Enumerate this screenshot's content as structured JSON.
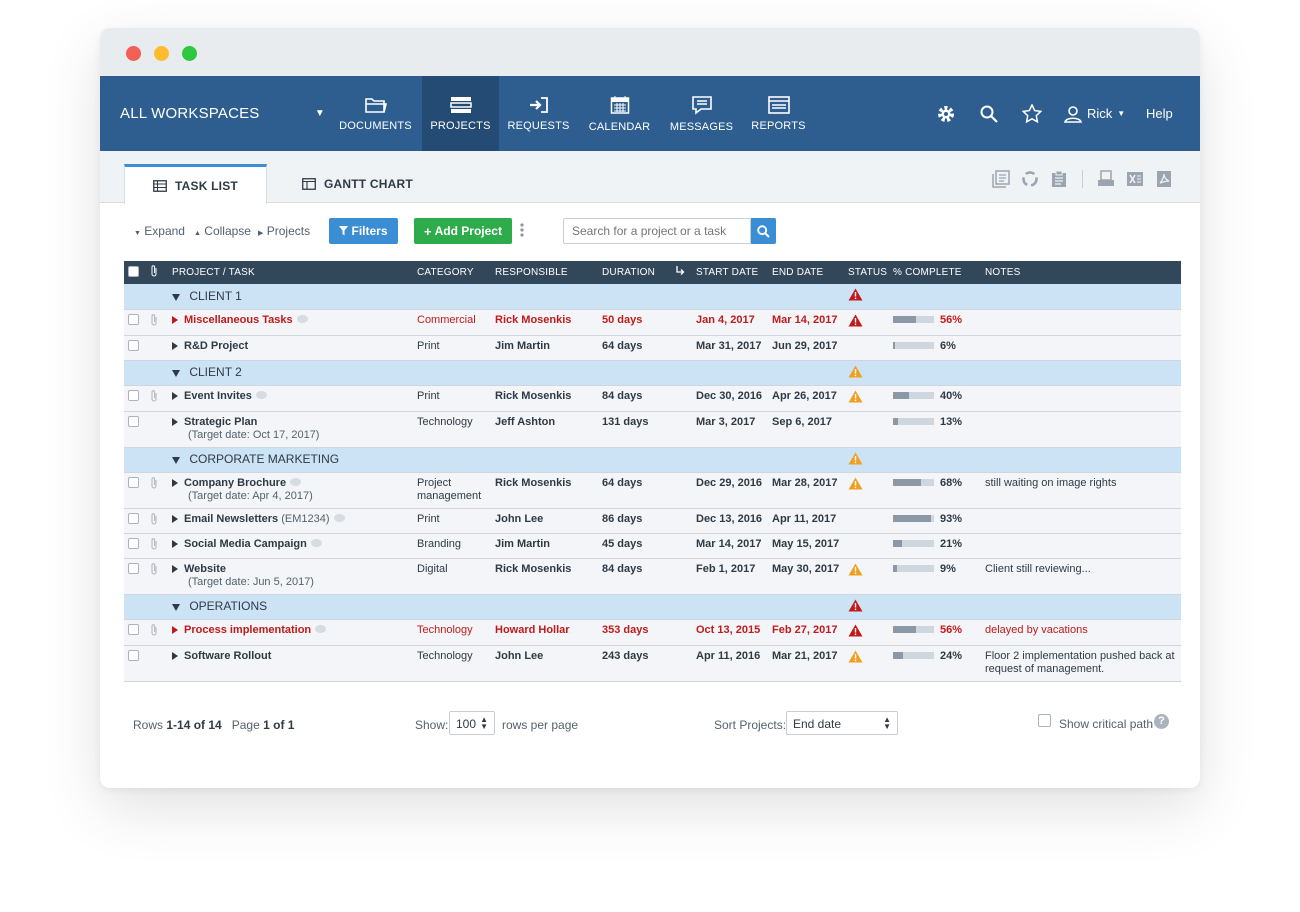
{
  "nav": {
    "workspace": "ALL WORKSPACES",
    "items": [
      {
        "label": "DOCUMENTS"
      },
      {
        "label": "PROJECTS"
      },
      {
        "label": "REQUESTS"
      },
      {
        "label": "CALENDAR"
      },
      {
        "label": "MESSAGES"
      },
      {
        "label": "REPORTS"
      }
    ],
    "user": "Rick",
    "help": "Help"
  },
  "tabs": {
    "task_list": "TASK LIST",
    "gantt_chart": "GANTT CHART"
  },
  "toolbar": {
    "expand": "Expand",
    "collapse": "Collapse",
    "projects": "Projects",
    "filters": "Filters",
    "add_project": "Add Project",
    "search_placeholder": "Search for a project or a task"
  },
  "table": {
    "headers": {
      "project": "PROJECT / TASK",
      "category": "CATEGORY",
      "responsible": "RESPONSIBLE",
      "duration": "DURATION",
      "start": "START DATE",
      "end": "END DATE",
      "status": "STATUS",
      "complete": "% COMPLETE",
      "notes": "NOTES"
    },
    "groups": [
      {
        "name": "CLIENT 1",
        "status": "red"
      },
      {
        "name": "CLIENT 2",
        "status": "orange"
      },
      {
        "name": "CORPORATE MARKETING",
        "status": "orange"
      },
      {
        "name": "OPERATIONS",
        "status": "red"
      }
    ],
    "rows": [
      {
        "name": "Miscellaneous Tasks",
        "code": "",
        "target": "",
        "category": "Commercial",
        "responsible": "Rick Mosenkis",
        "duration": "50 days",
        "start": "Jan 4, 2017",
        "end": "Mar 14, 2017",
        "status": "red",
        "progress": 0.56,
        "pct": "56%",
        "notes": ""
      },
      {
        "name": "R&D Project",
        "code": "",
        "target": "",
        "category": "Print",
        "responsible": "Jim Martin",
        "duration": "64 days",
        "start": "Mar 31, 2017",
        "end": "Jun 29, 2017",
        "status": "",
        "progress": 0.06,
        "pct": "6%",
        "notes": ""
      },
      {
        "name": "Event Invites",
        "code": "",
        "target": "",
        "category": "Print",
        "responsible": "Rick Mosenkis",
        "duration": "84 days",
        "start": "Dec 30, 2016",
        "end": "Apr 26, 2017",
        "status": "orange",
        "progress": 0.4,
        "pct": "40%",
        "notes": ""
      },
      {
        "name": "Strategic Plan",
        "code": "",
        "target": "(Target date: Oct 17, 2017)",
        "category": "Technology",
        "responsible": "Jeff Ashton",
        "duration": "131 days",
        "start": "Mar 3, 2017",
        "end": "Sep 6, 2017",
        "status": "",
        "progress": 0.13,
        "pct": "13%",
        "notes": ""
      },
      {
        "name": "Company Brochure",
        "code": "",
        "target": "(Target date: Apr 4, 2017)",
        "category": "Project management",
        "responsible": "Rick Mosenkis",
        "duration": "64 days",
        "start": "Dec 29, 2016",
        "end": "Mar 28, 2017",
        "status": "orange",
        "progress": 0.68,
        "pct": "68%",
        "notes": "still waiting on image rights"
      },
      {
        "name": "Email Newsletters",
        "code": "(EM1234)",
        "target": "",
        "category": "Print",
        "responsible": "John Lee",
        "duration": "86 days",
        "start": "Dec 13, 2016",
        "end": "Apr 11, 2017",
        "status": "",
        "progress": 0.93,
        "pct": "93%",
        "notes": ""
      },
      {
        "name": "Social Media Campaign",
        "code": "",
        "target": "",
        "category": "Branding",
        "responsible": "Jim Martin",
        "duration": "45 days",
        "start": "Mar 14, 2017",
        "end": "May 15, 2017",
        "status": "",
        "progress": 0.21,
        "pct": "21%",
        "notes": ""
      },
      {
        "name": "Website",
        "code": "",
        "target": "(Target date: Jun 5, 2017)",
        "category": "Digital",
        "responsible": "Rick Mosenkis",
        "duration": "84 days",
        "start": "Feb 1, 2017",
        "end": "May 30, 2017",
        "status": "orange",
        "progress": 0.09,
        "pct": "9%",
        "notes": "Client still reviewing..."
      },
      {
        "name": "Process implementation",
        "code": "",
        "target": "",
        "category": "Technology",
        "responsible": "Howard Hollar",
        "duration": "353 days",
        "start": "Oct 13, 2015",
        "end": "Feb 27, 2017",
        "status": "red",
        "progress": 0.56,
        "pct": "56%",
        "notes": "delayed by vacations"
      },
      {
        "name": "Software Rollout",
        "code": "",
        "target": "",
        "category": "Technology",
        "responsible": "John Lee",
        "duration": "243 days",
        "start": "Apr 11, 2016",
        "end": "Mar 21, 2017",
        "status": "orange",
        "progress": 0.24,
        "pct": "24%",
        "notes": "Floor 2 implementation pushed back at request of management."
      }
    ]
  },
  "footer": {
    "rows_prefix": "Rows",
    "rows_range": "1-14 of 14",
    "page_prefix": "Page",
    "page_value": "1 of 1",
    "show_label": "Show:",
    "show_value": "100",
    "rows_per_page": "rows per page",
    "sort_label": "Sort Projects:",
    "sort_value": "End date",
    "critical_path": "Show critical path"
  }
}
